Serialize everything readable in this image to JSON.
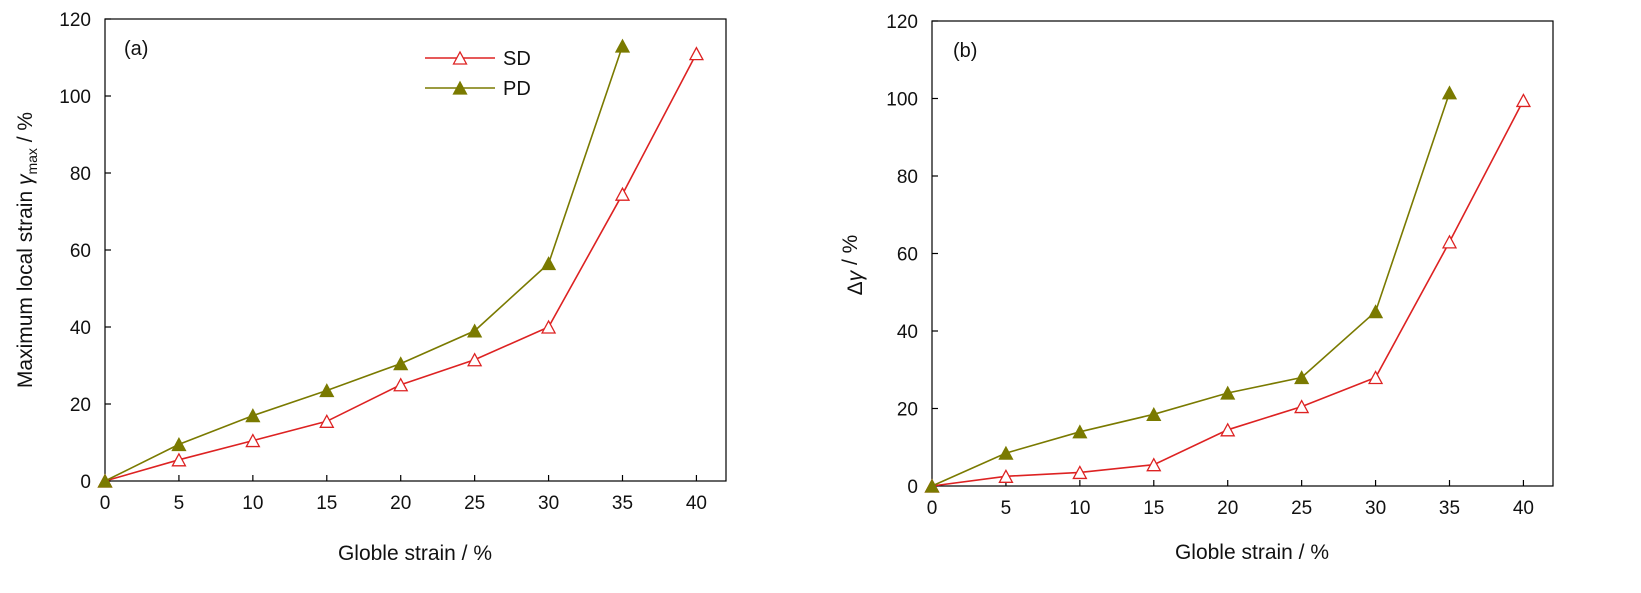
{
  "chart_data": [
    {
      "type": "line",
      "panel_label": "(a)",
      "xlabel": "Globle strain / %",
      "ylabel": "Maximum local strain ",
      "ylabel_symbol": "γ",
      "ylabel_subscript": "max",
      "ylabel_suffix": " / %",
      "xlim": [
        0,
        42
      ],
      "ylim": [
        0,
        120
      ],
      "xticks": [
        0,
        5,
        10,
        15,
        20,
        25,
        30,
        35,
        40
      ],
      "yticks": [
        0,
        20,
        40,
        60,
        80,
        100,
        120
      ],
      "legend": "top-center",
      "series": [
        {
          "name": "SD",
          "x": [
            0,
            5,
            10,
            15,
            20,
            25,
            30,
            35,
            40
          ],
          "y": [
            0,
            5.5,
            10.5,
            15.5,
            25,
            31.5,
            40,
            74.5,
            111
          ],
          "color": "#dd2222",
          "marker": "open-triangle"
        },
        {
          "name": "PD",
          "x": [
            0,
            5,
            10,
            15,
            20,
            25,
            30,
            35
          ],
          "y": [
            0,
            9.5,
            17,
            23.5,
            30.5,
            39,
            56.5,
            113
          ],
          "color": "#7a7a00",
          "marker": "filled-triangle"
        }
      ]
    },
    {
      "type": "line",
      "panel_label": "(b)",
      "xlabel": "Globle strain / %",
      "ylabel": "Δ",
      "ylabel_symbol": "γ",
      "ylabel_subscript": "",
      "ylabel_suffix": " / %",
      "xlim": [
        0,
        42
      ],
      "ylim": [
        0,
        120
      ],
      "xticks": [
        0,
        5,
        10,
        15,
        20,
        25,
        30,
        35,
        40
      ],
      "yticks": [
        0,
        20,
        40,
        60,
        80,
        100,
        120
      ],
      "series": [
        {
          "name": "SD",
          "x": [
            0,
            5,
            10,
            15,
            20,
            25,
            30,
            35,
            40
          ],
          "y": [
            0,
            2.5,
            3.5,
            5.5,
            14.5,
            20.5,
            28,
            63,
            99.5
          ],
          "color": "#dd2222",
          "marker": "open-triangle"
        },
        {
          "name": "PD",
          "x": [
            0,
            5,
            10,
            15,
            20,
            25,
            30,
            35
          ],
          "y": [
            0,
            8.5,
            14,
            18.5,
            24,
            28,
            45,
            101.5
          ],
          "color": "#7a7a00",
          "marker": "filled-triangle"
        }
      ]
    }
  ]
}
